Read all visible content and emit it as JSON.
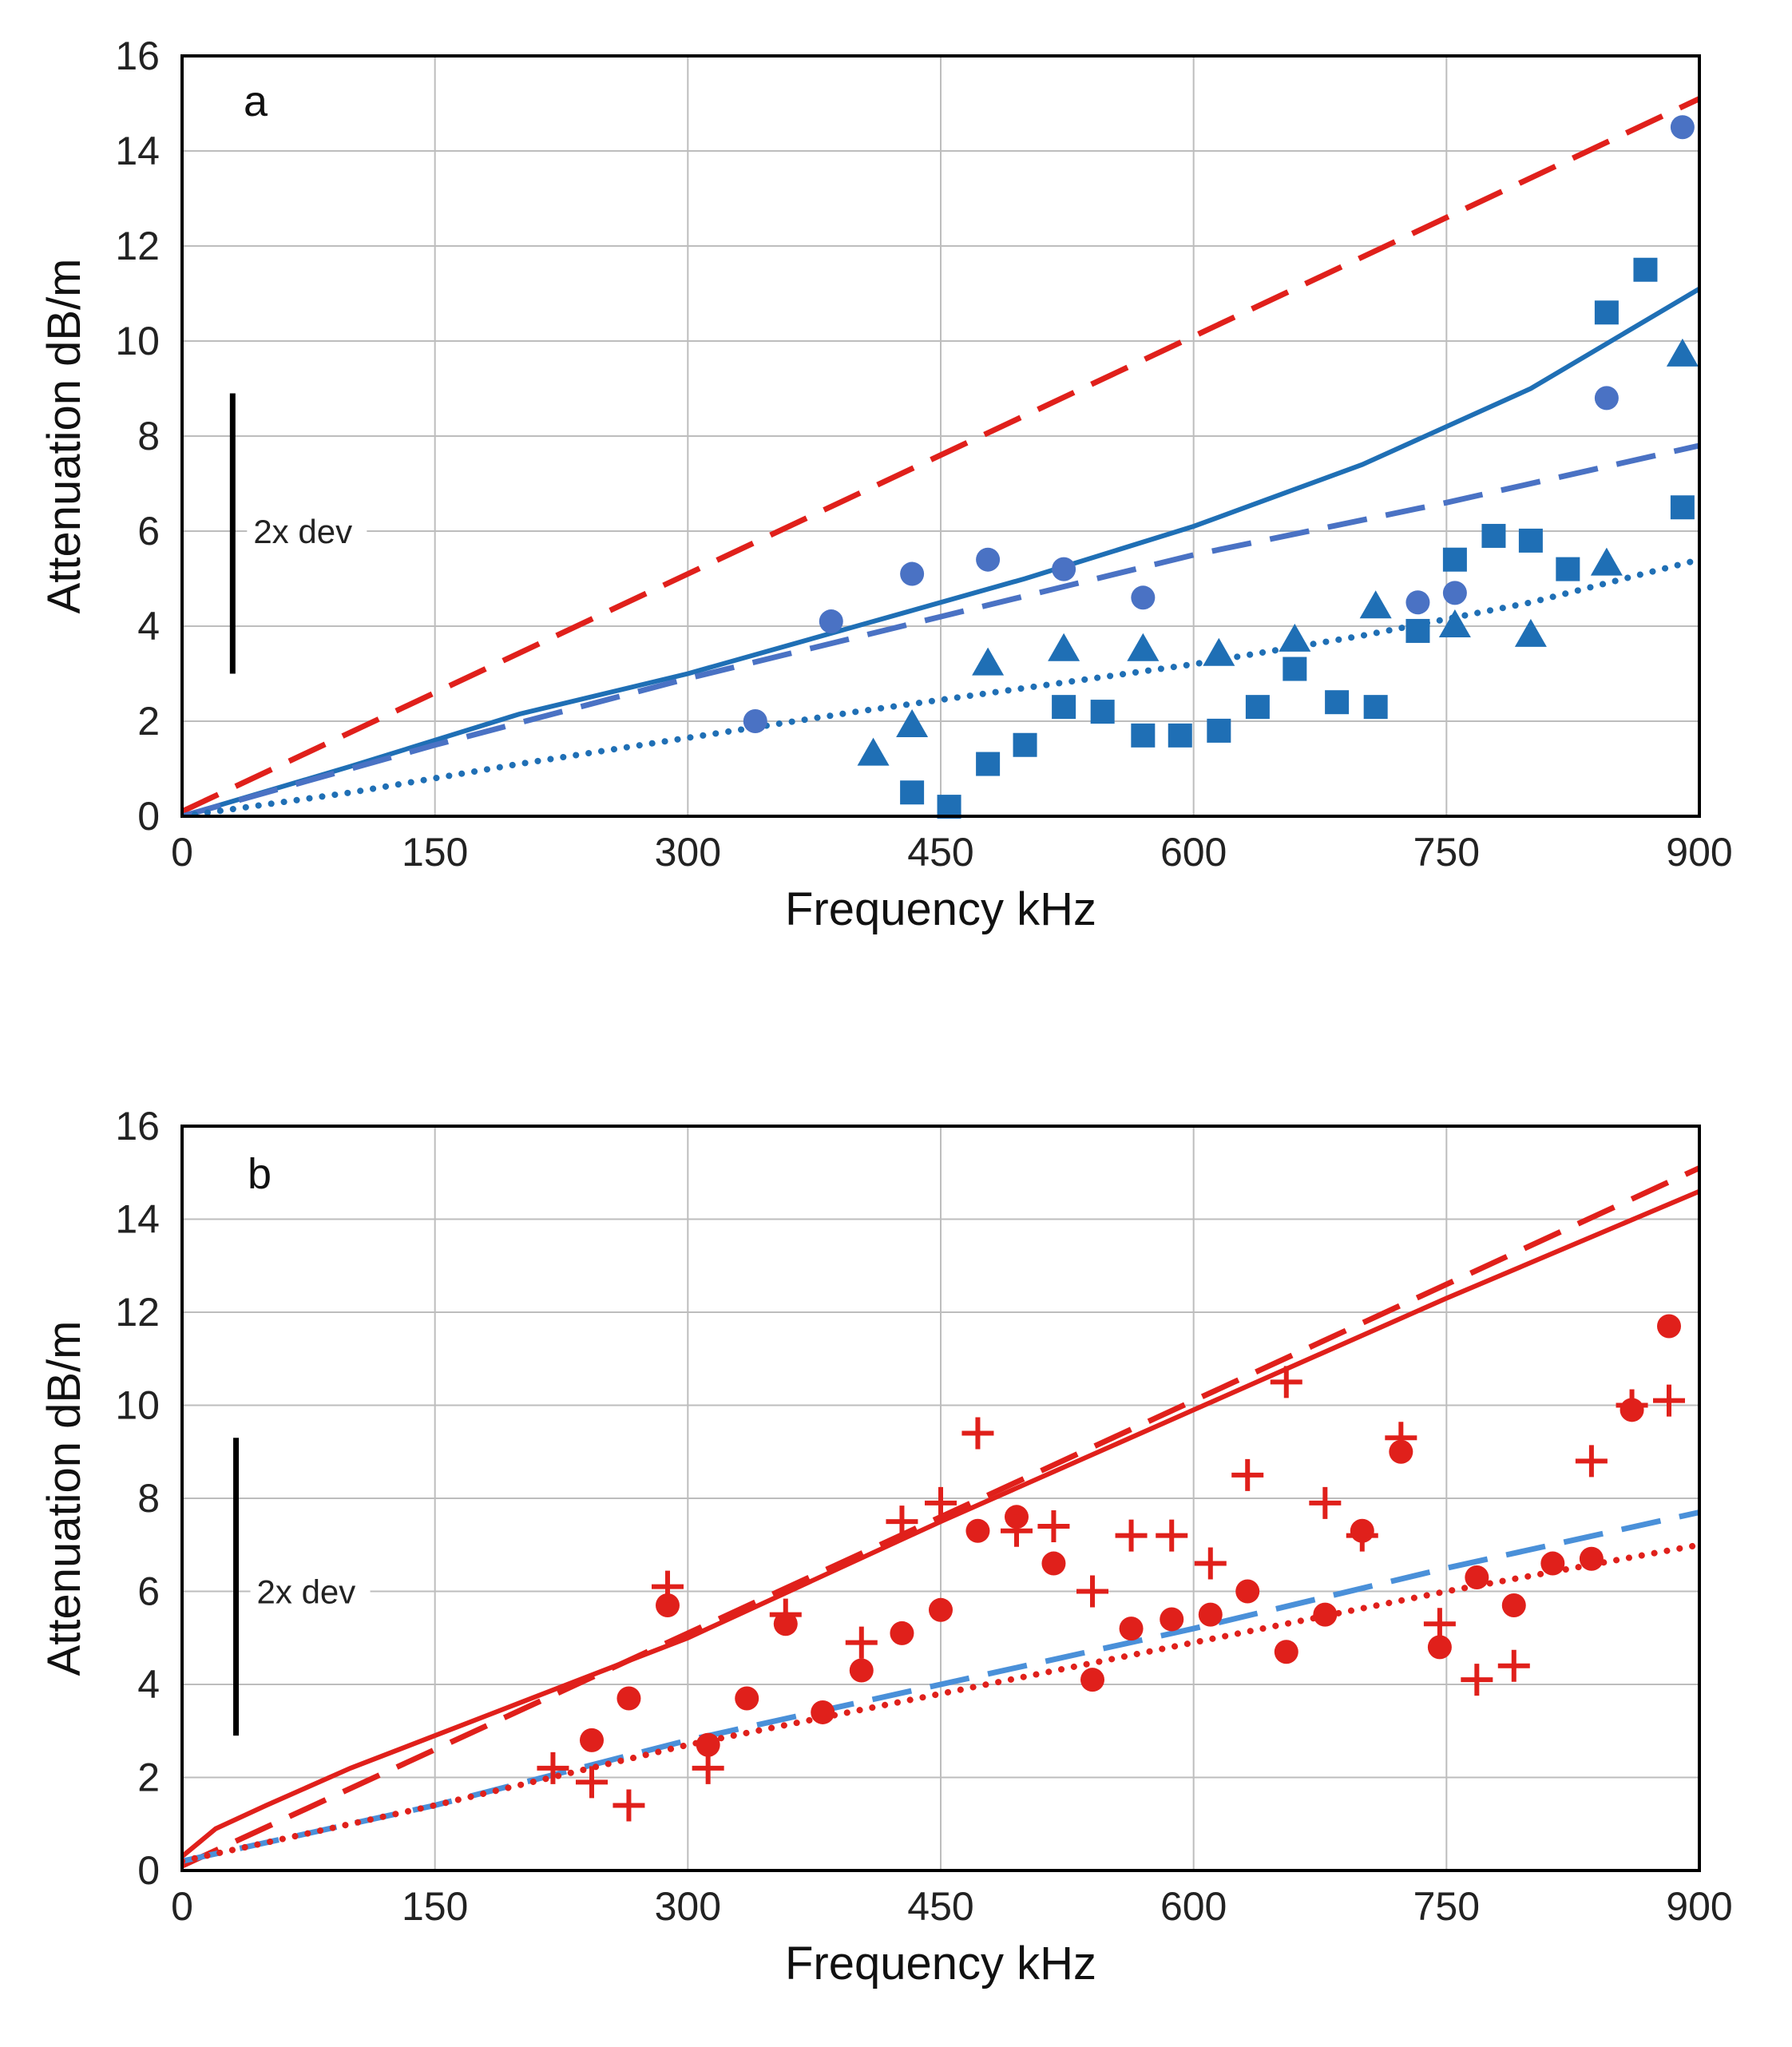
{
  "chart_data": [
    {
      "type": "scatter",
      "panel_label": "a",
      "xlabel": "Frequency  kHz",
      "ylabel": "Attenuation  dB/m",
      "xlim": [
        0,
        900
      ],
      "ylim": [
        0,
        16
      ],
      "xticks": [
        0,
        150,
        300,
        450,
        600,
        750,
        900
      ],
      "yticks": [
        0,
        2,
        4,
        6,
        8,
        10,
        12,
        14,
        16
      ],
      "grid": true,
      "error_bar": {
        "label": "2x dev",
        "x": 30,
        "y_low": 3,
        "y_high": 8.9
      },
      "lines": [
        {
          "style": "dashed",
          "color": "#e0201b",
          "x": [
            0,
            900
          ],
          "y": [
            0.1,
            15.1
          ]
        },
        {
          "style": "solid",
          "color": "#1f6fb5",
          "x": [
            0,
            100,
            200,
            300,
            400,
            500,
            600,
            700,
            800,
            900
          ],
          "y": [
            0,
            1.05,
            2.15,
            3.0,
            4.0,
            5.0,
            6.1,
            7.4,
            9.0,
            11.1
          ]
        },
        {
          "style": "dashed",
          "color": "#4a72c4",
          "x": [
            0,
            150,
            300,
            450,
            600,
            750,
            900
          ],
          "y": [
            0,
            1.5,
            2.9,
            4.2,
            5.5,
            6.6,
            7.8
          ]
        },
        {
          "style": "dotted",
          "color": "#1f6fb5",
          "x": [
            0,
            100,
            200,
            300,
            400,
            500,
            600,
            700,
            800,
            900
          ],
          "y": [
            0,
            0.5,
            1.1,
            1.65,
            2.2,
            2.7,
            3.2,
            3.8,
            4.5,
            5.4
          ]
        }
      ],
      "series": [
        {
          "marker": "circle",
          "color": "#4a72c4",
          "x": [
            340,
            385,
            433,
            478,
            523,
            570,
            733,
            755,
            845,
            890
          ],
          "y": [
            2.0,
            4.1,
            5.1,
            5.4,
            5.2,
            4.6,
            4.5,
            4.7,
            8.8,
            14.5
          ]
        },
        {
          "marker": "square",
          "color": "#1f6fb5",
          "x": [
            433,
            455,
            478,
            500,
            523,
            546,
            570,
            592,
            615,
            638,
            660,
            685,
            708,
            733,
            755,
            778,
            800,
            822,
            845,
            868,
            890
          ],
          "y": [
            0.5,
            0.2,
            1.1,
            1.5,
            2.3,
            2.2,
            1.7,
            1.7,
            1.8,
            2.3,
            3.1,
            2.4,
            2.3,
            3.9,
            5.4,
            5.9,
            5.8,
            5.2,
            10.6,
            11.5,
            6.5
          ]
        },
        {
          "marker": "triangle",
          "color": "#1f6fb5",
          "x": [
            410,
            433,
            478,
            523,
            570,
            615,
            660,
            708,
            755,
            800,
            845,
            890
          ],
          "y": [
            1.3,
            1.9,
            3.2,
            3.5,
            3.5,
            3.4,
            3.7,
            4.4,
            4.0,
            3.8,
            5.3,
            9.7
          ]
        }
      ]
    },
    {
      "type": "scatter",
      "panel_label": "b",
      "xlabel": "Frequency  kHz",
      "ylabel": "Attenuation  dB/m",
      "xlim": [
        0,
        900
      ],
      "ylim": [
        0,
        16
      ],
      "xticks": [
        0,
        150,
        300,
        450,
        600,
        750,
        900
      ],
      "yticks": [
        0,
        2,
        4,
        6,
        8,
        10,
        12,
        14,
        16
      ],
      "grid": true,
      "error_bar": {
        "label": "2x dev",
        "x": 32,
        "y_low": 2.9,
        "y_high": 9.3
      },
      "lines": [
        {
          "style": "dashed",
          "color": "#e0201b",
          "x": [
            0,
            900
          ],
          "y": [
            0.1,
            15.1
          ]
        },
        {
          "style": "solid",
          "color": "#e0201b",
          "x": [
            0,
            20,
            50,
            100,
            150,
            200,
            300,
            450,
            600,
            750,
            900
          ],
          "y": [
            0.3,
            0.9,
            1.4,
            2.2,
            2.9,
            3.6,
            5.0,
            7.5,
            9.9,
            12.3,
            14.6
          ]
        },
        {
          "style": "dashed",
          "color": "#4a90d9",
          "x": [
            0,
            150,
            300,
            450,
            600,
            750,
            900
          ],
          "y": [
            0.2,
            1.4,
            2.8,
            4.0,
            5.2,
            6.5,
            7.7
          ]
        },
        {
          "style": "dotted",
          "color": "#e0201b",
          "x": [
            0,
            150,
            300,
            450,
            600,
            750,
            900
          ],
          "y": [
            0.2,
            1.4,
            2.7,
            3.8,
            4.9,
            6.0,
            7.0
          ]
        }
      ],
      "series": [
        {
          "marker": "circle",
          "color": "#e0201b",
          "x": [
            243,
            265,
            288,
            312,
            335,
            358,
            380,
            403,
            427,
            450,
            472,
            495,
            517,
            540,
            563,
            587,
            610,
            632,
            655,
            678,
            700,
            723,
            746,
            768,
            790,
            813,
            836,
            860,
            882
          ],
          "y": [
            2.8,
            3.7,
            5.7,
            2.7,
            3.7,
            5.3,
            3.4,
            4.3,
            5.1,
            5.6,
            7.3,
            7.6,
            6.6,
            4.1,
            5.2,
            5.4,
            5.5,
            6.0,
            4.7,
            5.5,
            7.3,
            9.0,
            4.8,
            6.3,
            5.7,
            6.6,
            6.7,
            9.9,
            11.7
          ]
        },
        {
          "marker": "plus",
          "color": "#e0201b",
          "x": [
            220,
            243,
            265,
            288,
            312,
            358,
            403,
            427,
            450,
            472,
            495,
            517,
            540,
            563,
            587,
            610,
            632,
            655,
            678,
            700,
            723,
            746,
            768,
            790,
            836,
            860,
            882
          ],
          "y": [
            2.2,
            1.9,
            1.4,
            6.1,
            2.2,
            5.5,
            4.9,
            7.5,
            7.9,
            9.4,
            7.3,
            7.4,
            6.0,
            7.2,
            7.2,
            6.6,
            8.5,
            10.5,
            7.9,
            7.2,
            9.3,
            5.3,
            4.1,
            4.4,
            8.8,
            10.0,
            10.1
          ]
        }
      ]
    }
  ]
}
